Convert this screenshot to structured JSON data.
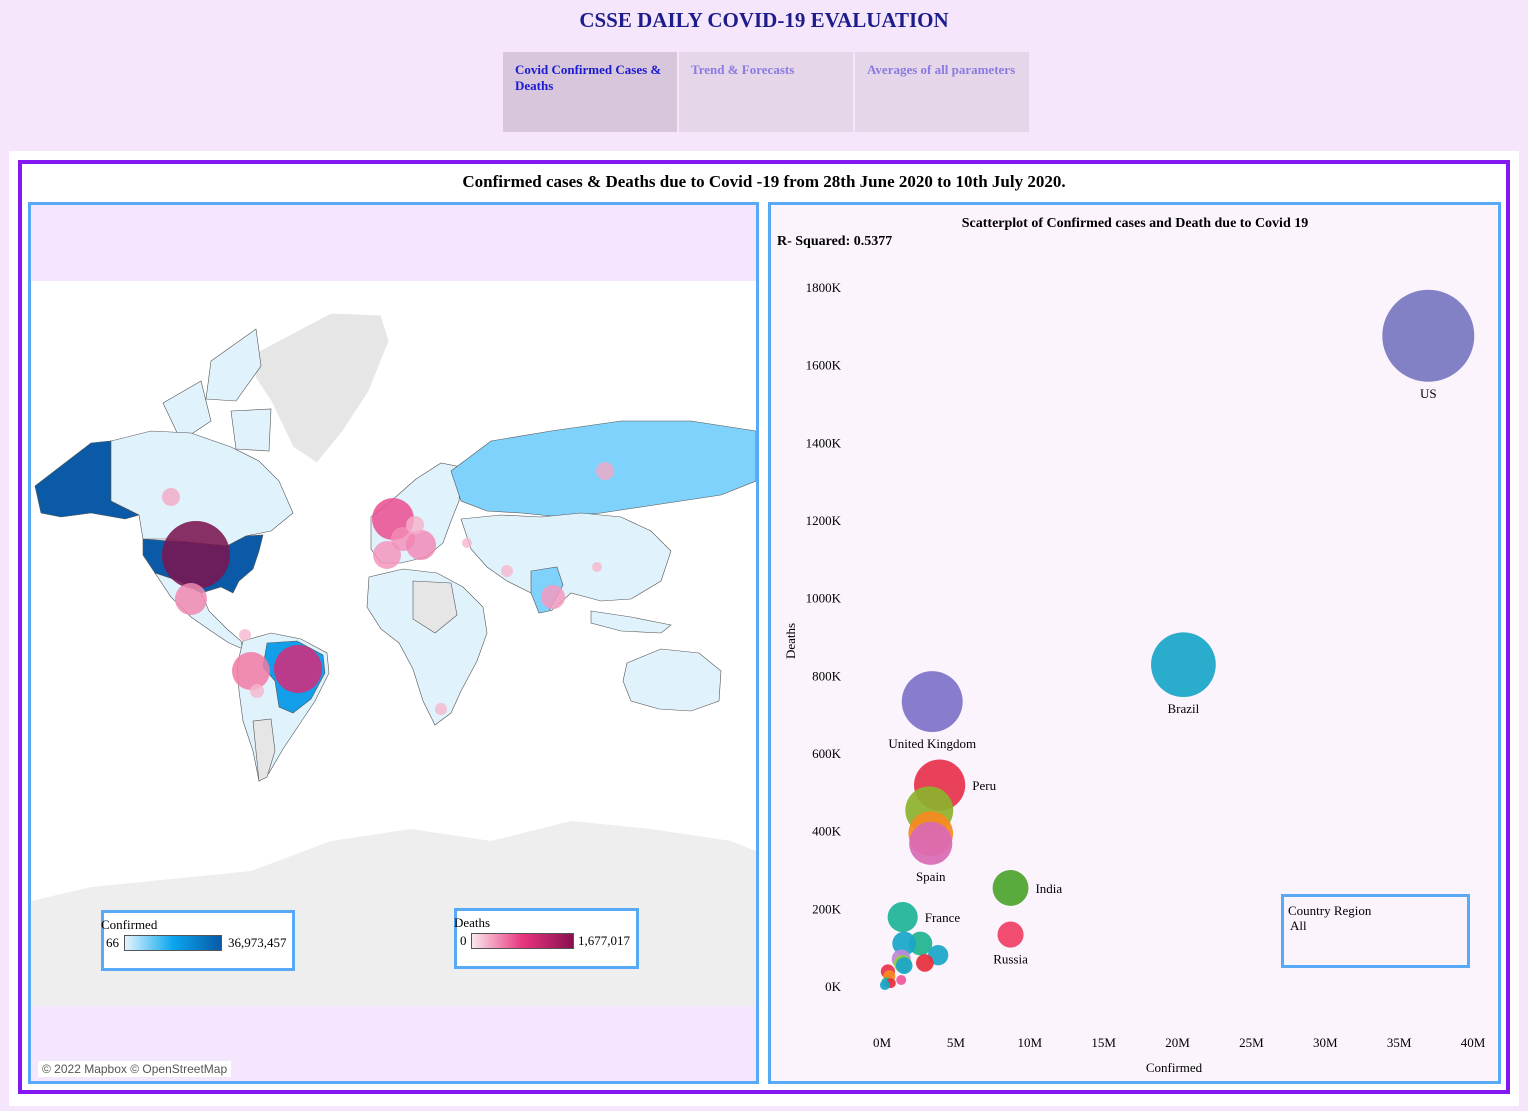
{
  "page": {
    "title": "CSSE DAILY COVID-19 EVALUATION",
    "dashboard_title": "Confirmed cases & Deaths due to Covid -19 from 28th June 2020 to 10th July 2020."
  },
  "tabs": [
    {
      "label": "Covid Confirmed Cases & Deaths",
      "active": true
    },
    {
      "label": "Trend & Forecasts",
      "active": false
    },
    {
      "label": "Averages of all parameters",
      "active": false
    }
  ],
  "map": {
    "attribution": "© 2022 Mapbox © OpenStreetMap",
    "legend_confirmed": {
      "title": "Confirmed",
      "min": "66",
      "max": "36,973,457",
      "color_low": "#e4f4fd",
      "color_high": "#0a5aa8"
    },
    "legend_deaths": {
      "title": "Deaths",
      "min": "0",
      "max": "1,677,017",
      "color_low": "#f9e8ee",
      "color_high": "#8a1050"
    },
    "colors": {
      "land": "#e0f2fc",
      "ocean": "#ffffff",
      "no_data": "#e6e6e6"
    }
  },
  "filter": {
    "title": "Country Region",
    "value": "All"
  },
  "chart_data": {
    "type": "scatter",
    "title": "Scatterplot of Confirmed cases and Death due to Covid 19",
    "annotation": "R- Squared: 0.5377",
    "xlabel": "Confirmed",
    "ylabel": "Deaths",
    "xlim": [
      0,
      40000000
    ],
    "ylim": [
      0,
      1800000
    ],
    "x_ticks": [
      {
        "value": 0,
        "label": "0M"
      },
      {
        "value": 5000000,
        "label": "5M"
      },
      {
        "value": 10000000,
        "label": "10M"
      },
      {
        "value": 15000000,
        "label": "15M"
      },
      {
        "value": 20000000,
        "label": "20M"
      },
      {
        "value": 25000000,
        "label": "25M"
      },
      {
        "value": 30000000,
        "label": "30M"
      },
      {
        "value": 35000000,
        "label": "35M"
      },
      {
        "value": 40000000,
        "label": "40M"
      }
    ],
    "y_ticks": [
      {
        "value": 0,
        "label": "0K"
      },
      {
        "value": 200000,
        "label": "200K"
      },
      {
        "value": 400000,
        "label": "400K"
      },
      {
        "value": 600000,
        "label": "600K"
      },
      {
        "value": 800000,
        "label": "800K"
      },
      {
        "value": 1000000,
        "label": "1000K"
      },
      {
        "value": 1200000,
        "label": "1200K"
      },
      {
        "value": 1400000,
        "label": "1400K"
      },
      {
        "value": 1600000,
        "label": "1600K"
      },
      {
        "value": 1800000,
        "label": "1800K"
      }
    ],
    "points": [
      {
        "label": "US",
        "x": 36973457,
        "y": 1677017,
        "color": "#7a77c2",
        "label_pos": "below"
      },
      {
        "label": "Brazil",
        "x": 20400000,
        "y": 830000,
        "color": "#1aa6c8",
        "label_pos": "below"
      },
      {
        "label": "United Kingdom",
        "x": 3400000,
        "y": 735000,
        "color": "#7f72c9",
        "label_pos": "below"
      },
      {
        "label": "Peru",
        "x": 3900000,
        "y": 520000,
        "color": "#e8334d",
        "label_pos": "right"
      },
      {
        "label": "",
        "x": 3200000,
        "y": 455000,
        "color": "#8db22c",
        "label_pos": ""
      },
      {
        "label": "",
        "x": 3300000,
        "y": 395000,
        "color": "#f68a20",
        "label_pos": ""
      },
      {
        "label": "Spain",
        "x": 3300000,
        "y": 370000,
        "color": "#d969b5",
        "label_pos": "below"
      },
      {
        "label": "India",
        "x": 8700000,
        "y": 255000,
        "color": "#4fa42e",
        "label_pos": "right"
      },
      {
        "label": "Russia",
        "x": 8700000,
        "y": 135000,
        "color": "#ef3f66",
        "label_pos": "below"
      },
      {
        "label": "France",
        "x": 1400000,
        "y": 180000,
        "color": "#1fb497",
        "label_pos": "right"
      },
      {
        "label": "",
        "x": 3800000,
        "y": 82000,
        "color": "#1aa6c8",
        "label_pos": ""
      },
      {
        "label": "",
        "x": 2900000,
        "y": 62000,
        "color": "#e62f3c",
        "label_pos": ""
      },
      {
        "label": "",
        "x": 2600000,
        "y": 112000,
        "color": "#1fb48f",
        "label_pos": ""
      },
      {
        "label": "",
        "x": 1500000,
        "y": 112000,
        "color": "#1aa6c8",
        "label_pos": ""
      },
      {
        "label": "",
        "x": 1400000,
        "y": 60000,
        "color": "#8fcf3a",
        "label_pos": ""
      },
      {
        "label": "",
        "x": 1300000,
        "y": 72000,
        "color": "#c08ad8",
        "label_pos": ""
      },
      {
        "label": "",
        "x": 1500000,
        "y": 55000,
        "color": "#1aa6c8",
        "label_pos": ""
      },
      {
        "label": "",
        "x": 1300000,
        "y": 18000,
        "color": "#f0569a",
        "label_pos": ""
      },
      {
        "label": "",
        "x": 600000,
        "y": 10000,
        "color": "#e62f3c",
        "label_pos": ""
      },
      {
        "label": "",
        "x": 300000,
        "y": 12000,
        "color": "#1fb497",
        "label_pos": ""
      },
      {
        "label": "",
        "x": 500000,
        "y": 28000,
        "color": "#f68a20",
        "label_pos": ""
      },
      {
        "label": "",
        "x": 400000,
        "y": 40000,
        "color": "#e8334d",
        "label_pos": ""
      },
      {
        "label": "",
        "x": 200000,
        "y": 5000,
        "color": "#1aa6c8",
        "label_pos": ""
      }
    ]
  }
}
